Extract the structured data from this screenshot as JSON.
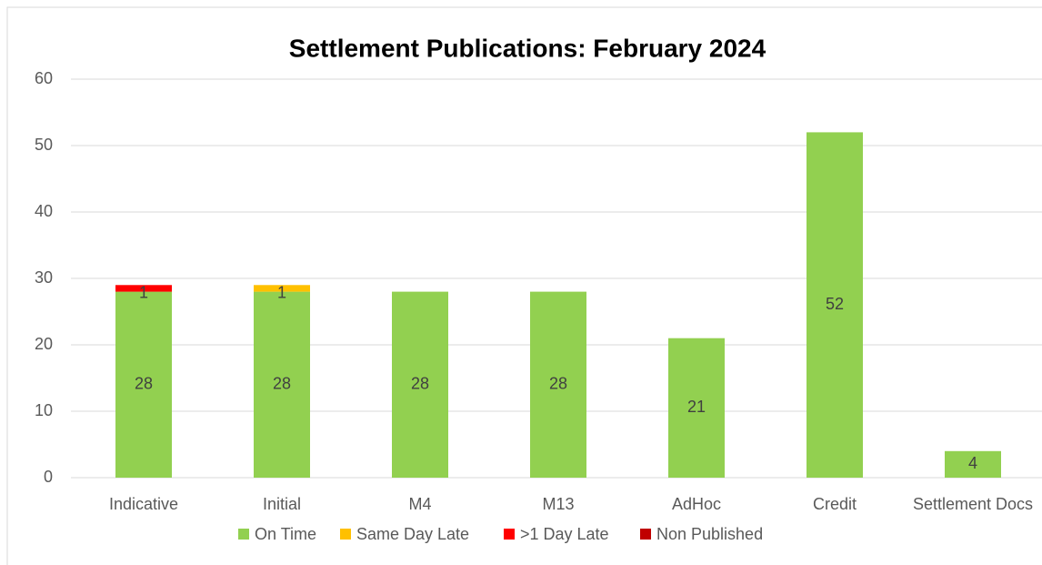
{
  "chart_data": {
    "type": "stacked_bar",
    "title": "Settlement Publications: February 2024",
    "categories": [
      "Indicative",
      "Initial",
      "M4",
      "M13",
      "AdHoc",
      "Credit",
      "Settlement Docs"
    ],
    "series": [
      {
        "name": "On Time",
        "color": "#92d050",
        "values": [
          28,
          28,
          28,
          28,
          21,
          52,
          4
        ]
      },
      {
        "name": "Same Day Late",
        "color": "#ffc000",
        "values": [
          0,
          1,
          0,
          0,
          0,
          0,
          0
        ]
      },
      {
        "name": ">1 Day Late",
        "color": "#ff0000",
        "values": [
          1,
          0,
          0,
          0,
          0,
          0,
          0
        ]
      },
      {
        "name": "Non Published",
        "color": "#c00000",
        "values": [
          0,
          0,
          0,
          0,
          0,
          0,
          0
        ]
      }
    ],
    "ylim": [
      0,
      60
    ],
    "yticks": [
      0,
      10,
      20,
      30,
      40,
      50,
      60
    ],
    "grid": true,
    "legend": "bottom"
  }
}
